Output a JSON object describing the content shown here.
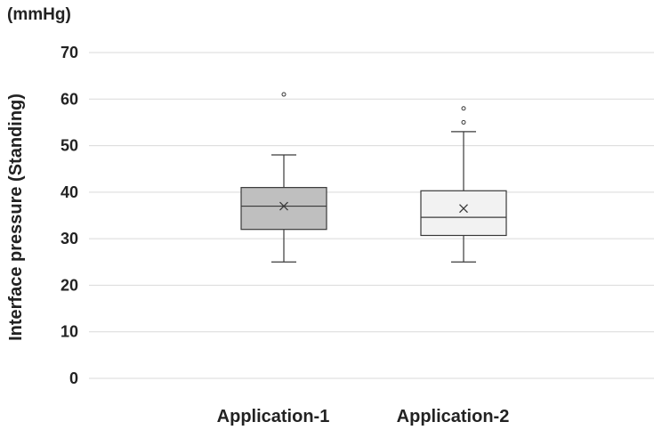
{
  "chart_data": {
    "type": "box",
    "unit_label": "(mmHg)",
    "ylabel": "Interface pressure (Standing)",
    "xlabel": "",
    "ylim": [
      0,
      70
    ],
    "yticks": [
      0,
      10,
      20,
      30,
      40,
      50,
      60,
      70
    ],
    "grid": true,
    "categories": [
      "Application-1",
      "Application-2"
    ],
    "boxes": [
      {
        "category": "Application-1",
        "whisker_low": 25,
        "q1": 32,
        "median": 37,
        "mean": 37,
        "q3": 41,
        "whisker_high": 48,
        "outliers": [
          61
        ],
        "fill": "#bfbfbf"
      },
      {
        "category": "Application-2",
        "whisker_low": 25,
        "q1": 30.7,
        "median": 34.6,
        "mean": 36.5,
        "q3": 40.3,
        "whisker_high": 53,
        "outliers": [
          55,
          58
        ],
        "fill": "#f2f2f2"
      }
    ],
    "colors": {
      "grid": "#d9d9d9",
      "stroke": "#3a3a3a"
    }
  }
}
